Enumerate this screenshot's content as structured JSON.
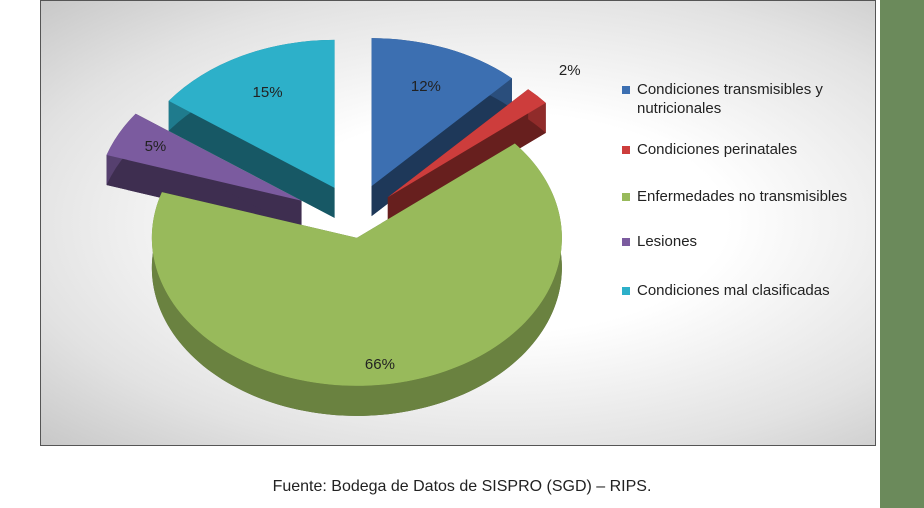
{
  "chart_data": {
    "type": "pie",
    "categories": [
      "Condiciones transmisibles y nutricionales",
      "Condiciones perinatales",
      "Enfermedades no transmisibles",
      "Lesiones",
      "Condiciones mal clasificadas"
    ],
    "values": [
      12,
      2,
      66,
      5,
      15
    ],
    "value_labels": [
      "12%",
      "2%",
      "66%",
      "5%",
      "15%"
    ],
    "colors": [
      "#3c6fb1",
      "#cd3d3c",
      "#98ba5b",
      "#7b5b9f",
      "#2db0c9"
    ],
    "legend": "right",
    "caption": "Fuente: Bodega de Datos de SISPRO (SGD) – RIPS."
  }
}
